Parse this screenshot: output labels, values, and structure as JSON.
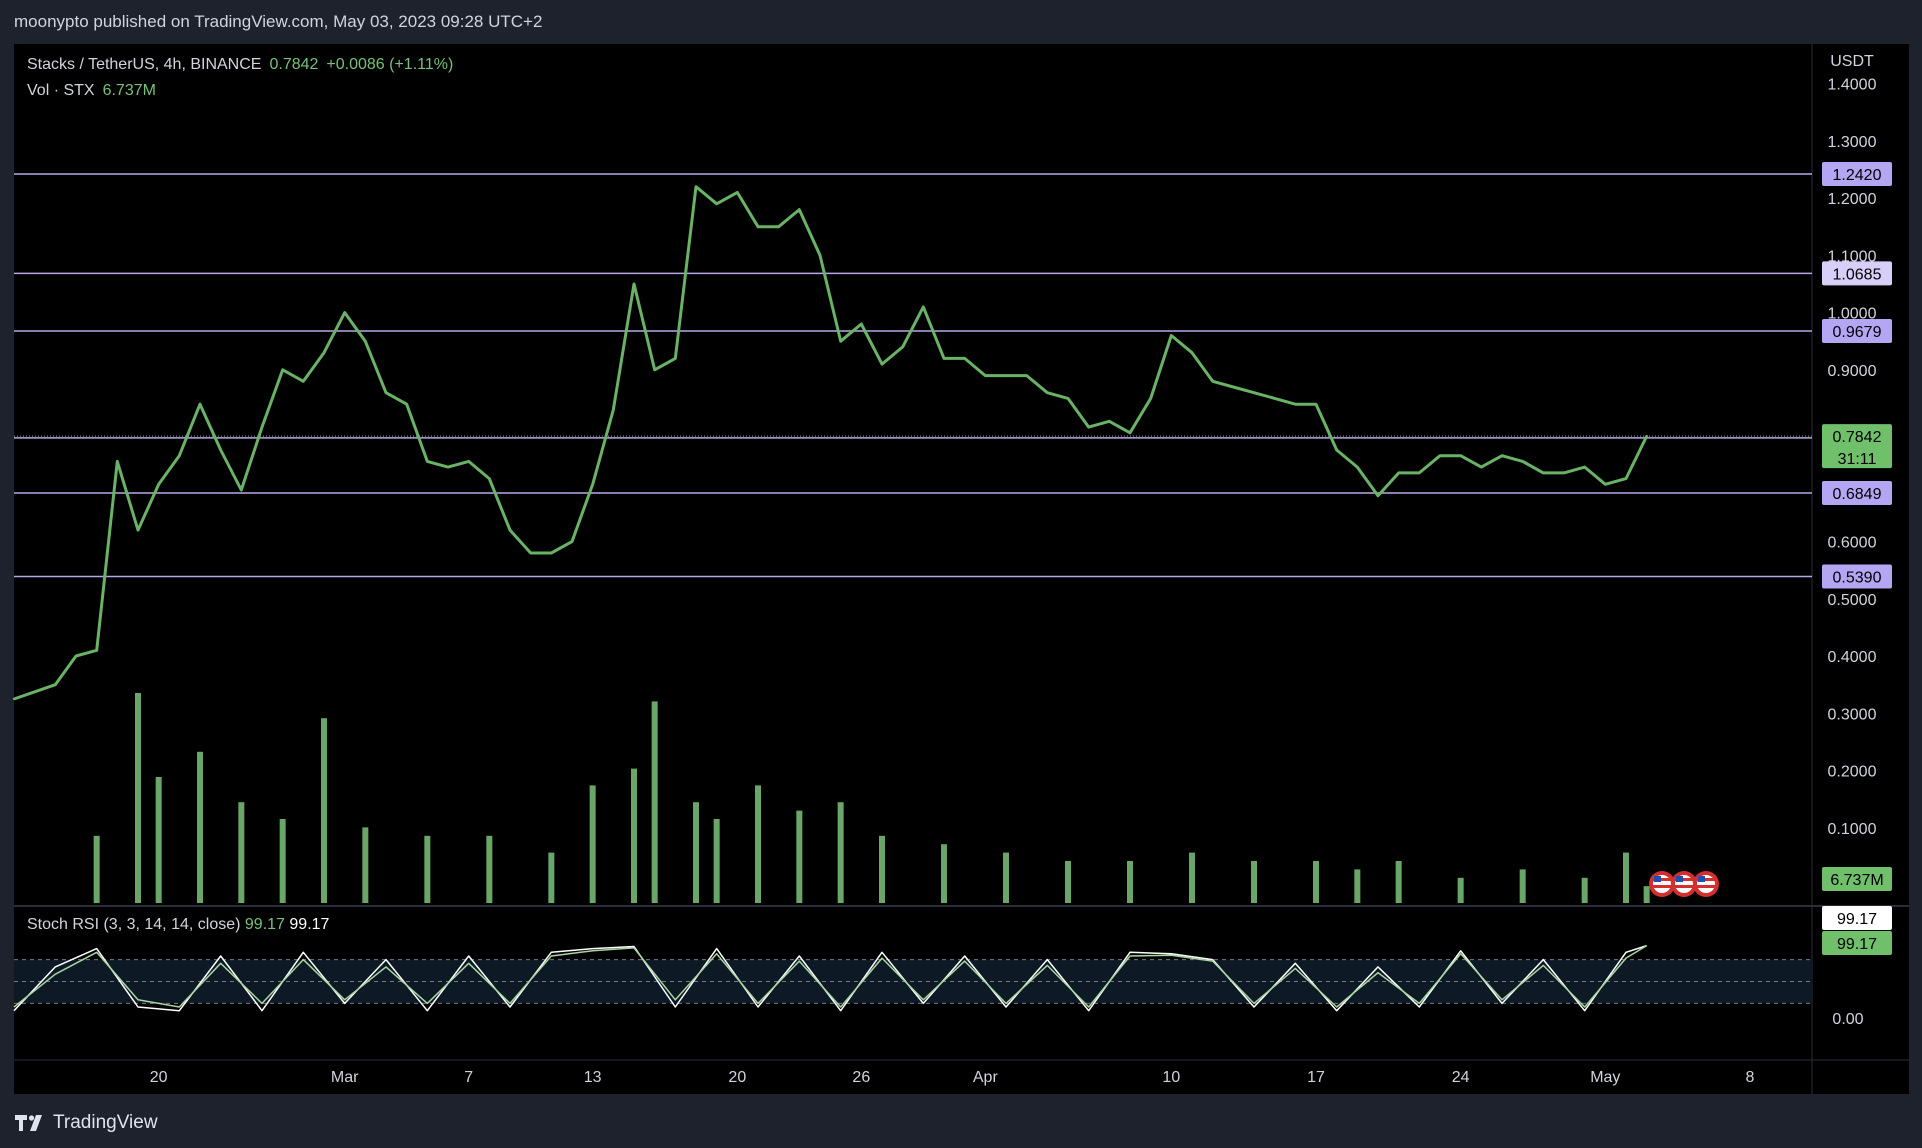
{
  "header": {
    "publisher_line": "moonypto published on TradingView.com, May 03, 2023 09:28 UTC+2"
  },
  "legend": {
    "symbol": "Stacks / TetherUS, 4h, BINANCE",
    "last_price": "0.7842",
    "change": "+0.0086 (+1.11%)",
    "vol_label": "Vol · STX",
    "vol_value": "6.737M"
  },
  "stoch_legend": {
    "label": "Stoch RSI (3, 3, 14, 14, close)",
    "k_value": "99.17",
    "d_value": "99.17"
  },
  "footer": {
    "brand": "TradingView"
  },
  "colors": {
    "price_line": "#69b266",
    "horizontal_level": "#b7a9e8",
    "level_tag_bg": "#b5a6f3",
    "level_tag_bg_light": "#d8cff8",
    "current_tag_bg": "#6fbf6b",
    "volume_bar": "#7cc379",
    "stoch_k": "#ffffff",
    "stoch_d": "#a8d5a0"
  },
  "chart_data": [
    {
      "type": "line",
      "title": "Stacks / TetherUS, 4h, BINANCE",
      "y_unit": "USDT",
      "ylim": [
        0.0,
        1.45
      ],
      "y_ticks": [
        "1.4000",
        "1.3000",
        "1.2000",
        "1.1000",
        "1.0000",
        "0.9000",
        "0.6000",
        "0.5000",
        "0.4000",
        "0.3000",
        "0.2000",
        "0.1000"
      ],
      "x_tick_labels": [
        "20",
        "Mar",
        "7",
        "13",
        "20",
        "26",
        "Apr",
        "10",
        "17",
        "24",
        "May",
        "8"
      ],
      "x_tick_dates": [
        "2023-02-20",
        "2023-03-01",
        "2023-03-07",
        "2023-03-13",
        "2023-03-20",
        "2023-03-26",
        "2023-04-01",
        "2023-04-10",
        "2023-04-17",
        "2023-04-24",
        "2023-05-01",
        "2023-05-08"
      ],
      "x_range": [
        "2023-02-13",
        "2023-05-11"
      ],
      "horizontal_levels": [
        {
          "value": 1.242,
          "label": "1.2420",
          "tag": "level"
        },
        {
          "value": 1.0685,
          "label": "1.0685",
          "tag": "level-light"
        },
        {
          "value": 0.9679,
          "label": "0.9679",
          "tag": "level"
        },
        {
          "value": 0.7811,
          "label": "0.7811",
          "tag": "level"
        },
        {
          "value": 0.6849,
          "label": "0.6849",
          "tag": "level"
        },
        {
          "value": 0.539,
          "label": "0.5390",
          "tag": "level"
        }
      ],
      "current_price": {
        "value": 0.7842,
        "label": "0.7842",
        "countdown": "31:11"
      },
      "series": [
        {
          "x": [
            "2023-02-13",
            "2023-02-15",
            "2023-02-16",
            "2023-02-17",
            "2023-02-18",
            "2023-02-19",
            "2023-02-20",
            "2023-02-21",
            "2023-02-22",
            "2023-02-23",
            "2023-02-24",
            "2023-02-25",
            "2023-02-26",
            "2023-02-27",
            "2023-02-28",
            "2023-03-01",
            "2023-03-02",
            "2023-03-03",
            "2023-03-04",
            "2023-03-05",
            "2023-03-06",
            "2023-03-07",
            "2023-03-08",
            "2023-03-09",
            "2023-03-10",
            "2023-03-11",
            "2023-03-12",
            "2023-03-13",
            "2023-03-14",
            "2023-03-15",
            "2023-03-16",
            "2023-03-17",
            "2023-03-18",
            "2023-03-19",
            "2023-03-20",
            "2023-03-21",
            "2023-03-22",
            "2023-03-23",
            "2023-03-24",
            "2023-03-25",
            "2023-03-26",
            "2023-03-27",
            "2023-03-28",
            "2023-03-29",
            "2023-03-30",
            "2023-03-31",
            "2023-04-01",
            "2023-04-02",
            "2023-04-03",
            "2023-04-04",
            "2023-04-05",
            "2023-04-06",
            "2023-04-07",
            "2023-04-08",
            "2023-04-09",
            "2023-04-10",
            "2023-04-11",
            "2023-04-12",
            "2023-04-13",
            "2023-04-14",
            "2023-04-15",
            "2023-04-16",
            "2023-04-17",
            "2023-04-18",
            "2023-04-19",
            "2023-04-20",
            "2023-04-21",
            "2023-04-22",
            "2023-04-23",
            "2023-04-24",
            "2023-04-25",
            "2023-04-26",
            "2023-04-27",
            "2023-04-28",
            "2023-04-29",
            "2023-04-30",
            "2023-05-01",
            "2023-05-02",
            "2023-05-03"
          ],
          "values": [
            0.325,
            0.35,
            0.4,
            0.41,
            0.74,
            0.62,
            0.7,
            0.75,
            0.84,
            0.76,
            0.69,
            0.8,
            0.9,
            0.88,
            0.93,
            1.0,
            0.95,
            0.86,
            0.84,
            0.74,
            0.73,
            0.74,
            0.71,
            0.62,
            0.58,
            0.58,
            0.6,
            0.7,
            0.83,
            1.05,
            0.9,
            0.92,
            1.22,
            1.19,
            1.21,
            1.15,
            1.15,
            1.18,
            1.1,
            0.95,
            0.98,
            0.91,
            0.94,
            1.01,
            0.92,
            0.92,
            0.89,
            0.89,
            0.89,
            0.86,
            0.85,
            0.8,
            0.81,
            0.79,
            0.85,
            0.96,
            0.93,
            0.88,
            0.87,
            0.86,
            0.85,
            0.84,
            0.84,
            0.76,
            0.73,
            0.68,
            0.72,
            0.72,
            0.75,
            0.75,
            0.73,
            0.75,
            0.74,
            0.72,
            0.72,
            0.73,
            0.7,
            0.71,
            0.7842
          ]
        }
      ]
    },
    {
      "type": "bar",
      "title": "Vol · STX",
      "current_label": "6.737M",
      "categories": [
        "2023-02-17",
        "2023-02-19",
        "2023-02-20",
        "2023-02-22",
        "2023-02-24",
        "2023-02-26",
        "2023-02-28",
        "2023-03-02",
        "2023-03-05",
        "2023-03-08",
        "2023-03-11",
        "2023-03-13",
        "2023-03-15",
        "2023-03-16",
        "2023-03-18",
        "2023-03-19",
        "2023-03-21",
        "2023-03-23",
        "2023-03-25",
        "2023-03-27",
        "2023-03-30",
        "2023-04-02",
        "2023-04-05",
        "2023-04-08",
        "2023-04-11",
        "2023-04-14",
        "2023-04-17",
        "2023-04-19",
        "2023-04-21",
        "2023-04-24",
        "2023-04-27",
        "2023-04-30",
        "2023-05-02",
        "2023-05-03"
      ],
      "values": [
        8,
        25,
        15,
        18,
        12,
        10,
        22,
        9,
        8,
        8,
        6,
        14,
        16,
        24,
        12,
        10,
        14,
        11,
        12,
        8,
        7,
        6,
        5,
        5,
        6,
        5,
        5,
        4,
        5,
        3,
        4,
        3,
        6,
        2
      ]
    },
    {
      "type": "line",
      "title": "Stoch RSI (3, 3, 14, 14, close)",
      "ylim": [
        0,
        100
      ],
      "y_ticks": [
        "0.00"
      ],
      "bands": [
        80,
        50,
        20
      ],
      "k_label": "99.17",
      "d_label": "99.17",
      "series": [
        {
          "name": "%K",
          "x": [
            "2023-02-13",
            "2023-02-15",
            "2023-02-17",
            "2023-02-19",
            "2023-02-21",
            "2023-02-23",
            "2023-02-25",
            "2023-02-27",
            "2023-03-01",
            "2023-03-03",
            "2023-03-05",
            "2023-03-07",
            "2023-03-09",
            "2023-03-11",
            "2023-03-13",
            "2023-03-15",
            "2023-03-17",
            "2023-03-19",
            "2023-03-21",
            "2023-03-23",
            "2023-03-25",
            "2023-03-27",
            "2023-03-29",
            "2023-03-31",
            "2023-04-02",
            "2023-04-04",
            "2023-04-06",
            "2023-04-08",
            "2023-04-10",
            "2023-04-12",
            "2023-04-14",
            "2023-04-16",
            "2023-04-18",
            "2023-04-20",
            "2023-04-22",
            "2023-04-24",
            "2023-04-26",
            "2023-04-28",
            "2023-04-30",
            "2023-05-02",
            "2023-05-03"
          ],
          "values": [
            10,
            70,
            95,
            15,
            10,
            85,
            10,
            90,
            20,
            80,
            10,
            85,
            15,
            90,
            95,
            98,
            15,
            95,
            15,
            85,
            10,
            90,
            20,
            85,
            15,
            80,
            10,
            90,
            88,
            80,
            15,
            75,
            10,
            70,
            15,
            92,
            20,
            80,
            10,
            90,
            99.17
          ]
        },
        {
          "name": "%D",
          "x": [
            "2023-02-13",
            "2023-02-15",
            "2023-02-17",
            "2023-02-19",
            "2023-02-21",
            "2023-02-23",
            "2023-02-25",
            "2023-02-27",
            "2023-03-01",
            "2023-03-03",
            "2023-03-05",
            "2023-03-07",
            "2023-03-09",
            "2023-03-11",
            "2023-03-13",
            "2023-03-15",
            "2023-03-17",
            "2023-03-19",
            "2023-03-21",
            "2023-03-23",
            "2023-03-25",
            "2023-03-27",
            "2023-03-29",
            "2023-03-31",
            "2023-04-02",
            "2023-04-04",
            "2023-04-06",
            "2023-04-08",
            "2023-04-10",
            "2023-04-12",
            "2023-04-14",
            "2023-04-16",
            "2023-04-18",
            "2023-04-20",
            "2023-04-22",
            "2023-04-24",
            "2023-04-26",
            "2023-04-28",
            "2023-04-30",
            "2023-05-02",
            "2023-05-03"
          ],
          "values": [
            15,
            60,
            90,
            25,
            15,
            75,
            20,
            80,
            25,
            70,
            20,
            75,
            20,
            85,
            92,
            96,
            25,
            88,
            20,
            78,
            15,
            82,
            25,
            78,
            20,
            72,
            15,
            85,
            86,
            78,
            20,
            68,
            15,
            62,
            20,
            88,
            25,
            72,
            15,
            82,
            99.17
          ]
        }
      ]
    }
  ]
}
